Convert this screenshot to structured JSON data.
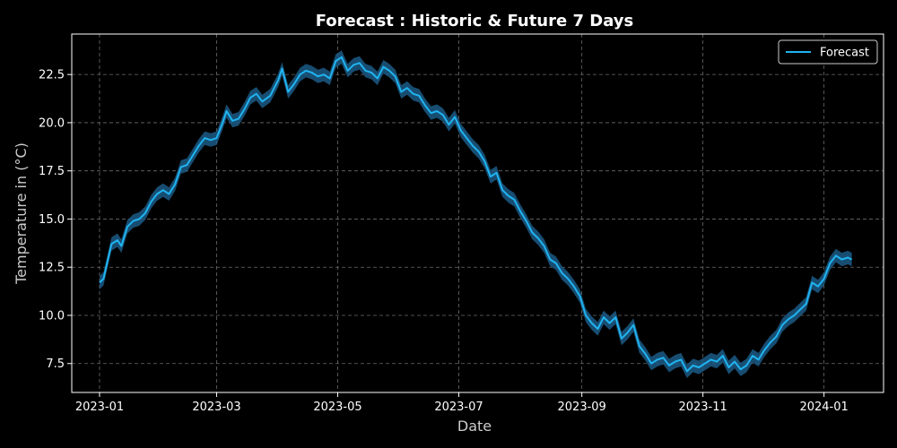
{
  "chart_data": {
    "type": "line",
    "title": "Forecast : Historic & Future 7 Days",
    "xlabel": "Date",
    "ylabel": "Temperature in (°C)",
    "xlim": [
      "2022-12-18",
      "2024-01-31"
    ],
    "ylim": [
      6.0,
      24.6
    ],
    "x_ticks": [
      "2023-01",
      "2023-03",
      "2023-05",
      "2023-07",
      "2023-09",
      "2023-11",
      "2024-01"
    ],
    "x_tick_dates": [
      "2023-01-01",
      "2023-03-01",
      "2023-05-01",
      "2023-07-01",
      "2023-09-01",
      "2023-11-01",
      "2024-01-01"
    ],
    "y_ticks": [
      "7.5",
      "10.0",
      "12.5",
      "15.0",
      "17.5",
      "20.0",
      "22.5"
    ],
    "grid": true,
    "legend_position": "top-right",
    "series": [
      {
        "name": "Forecast",
        "color": "#1fb4f0",
        "band_color": "#1c5b86",
        "band_width": 0.35,
        "points": [
          [
            "2023-01-01",
            11.7
          ],
          [
            "2023-01-03",
            11.9
          ],
          [
            "2023-01-05",
            12.8
          ],
          [
            "2023-01-07",
            13.7
          ],
          [
            "2023-01-10",
            13.9
          ],
          [
            "2023-01-12",
            13.6
          ],
          [
            "2023-01-15",
            14.6
          ],
          [
            "2023-01-18",
            14.9
          ],
          [
            "2023-01-21",
            15.0
          ],
          [
            "2023-01-24",
            15.3
          ],
          [
            "2023-01-27",
            15.9
          ],
          [
            "2023-01-30",
            16.3
          ],
          [
            "2023-02-02",
            16.5
          ],
          [
            "2023-02-05",
            16.3
          ],
          [
            "2023-02-08",
            16.8
          ],
          [
            "2023-02-11",
            17.7
          ],
          [
            "2023-02-14",
            17.8
          ],
          [
            "2023-02-17",
            18.3
          ],
          [
            "2023-02-20",
            18.8
          ],
          [
            "2023-02-23",
            19.2
          ],
          [
            "2023-02-26",
            19.1
          ],
          [
            "2023-03-01",
            19.2
          ],
          [
            "2023-03-04",
            20.0
          ],
          [
            "2023-03-06",
            20.6
          ],
          [
            "2023-03-09",
            20.1
          ],
          [
            "2023-03-12",
            20.2
          ],
          [
            "2023-03-15",
            20.7
          ],
          [
            "2023-03-18",
            21.3
          ],
          [
            "2023-03-21",
            21.5
          ],
          [
            "2023-03-24",
            21.1
          ],
          [
            "2023-03-28",
            21.4
          ],
          [
            "2023-04-01",
            22.2
          ],
          [
            "2023-04-03",
            22.8
          ],
          [
            "2023-04-06",
            21.6
          ],
          [
            "2023-04-09",
            22.0
          ],
          [
            "2023-04-12",
            22.5
          ],
          [
            "2023-04-15",
            22.7
          ],
          [
            "2023-04-18",
            22.6
          ],
          [
            "2023-04-21",
            22.4
          ],
          [
            "2023-04-24",
            22.5
          ],
          [
            "2023-04-27",
            22.3
          ],
          [
            "2023-04-30",
            23.2
          ],
          [
            "2023-05-03",
            23.4
          ],
          [
            "2023-05-06",
            22.7
          ],
          [
            "2023-05-09",
            23.0
          ],
          [
            "2023-05-12",
            23.1
          ],
          [
            "2023-05-15",
            22.7
          ],
          [
            "2023-05-18",
            22.6
          ],
          [
            "2023-05-21",
            22.3
          ],
          [
            "2023-05-24",
            22.9
          ],
          [
            "2023-05-27",
            22.7
          ],
          [
            "2023-05-30",
            22.4
          ],
          [
            "2023-06-02",
            21.6
          ],
          [
            "2023-06-05",
            21.8
          ],
          [
            "2023-06-08",
            21.5
          ],
          [
            "2023-06-11",
            21.4
          ],
          [
            "2023-06-14",
            20.9
          ],
          [
            "2023-06-17",
            20.5
          ],
          [
            "2023-06-20",
            20.6
          ],
          [
            "2023-06-23",
            20.4
          ],
          [
            "2023-06-26",
            19.9
          ],
          [
            "2023-06-29",
            20.3
          ],
          [
            "2023-07-02",
            19.6
          ],
          [
            "2023-07-05",
            19.2
          ],
          [
            "2023-07-08",
            18.8
          ],
          [
            "2023-07-11",
            18.5
          ],
          [
            "2023-07-14",
            18.0
          ],
          [
            "2023-07-17",
            17.2
          ],
          [
            "2023-07-20",
            17.4
          ],
          [
            "2023-07-23",
            16.5
          ],
          [
            "2023-07-26",
            16.2
          ],
          [
            "2023-07-29",
            16.0
          ],
          [
            "2023-08-01",
            15.4
          ],
          [
            "2023-08-04",
            14.9
          ],
          [
            "2023-08-07",
            14.3
          ],
          [
            "2023-08-10",
            14.0
          ],
          [
            "2023-08-13",
            13.6
          ],
          [
            "2023-08-16",
            12.9
          ],
          [
            "2023-08-19",
            12.7
          ],
          [
            "2023-08-22",
            12.2
          ],
          [
            "2023-08-25",
            11.9
          ],
          [
            "2023-08-28",
            11.5
          ],
          [
            "2023-08-31",
            11.0
          ],
          [
            "2023-09-03",
            10.0
          ],
          [
            "2023-09-06",
            9.6
          ],
          [
            "2023-09-09",
            9.3
          ],
          [
            "2023-09-12",
            9.9
          ],
          [
            "2023-09-15",
            9.6
          ],
          [
            "2023-09-18",
            9.9
          ],
          [
            "2023-09-21",
            8.8
          ],
          [
            "2023-09-24",
            9.1
          ],
          [
            "2023-09-27",
            9.5
          ],
          [
            "2023-09-30",
            8.4
          ],
          [
            "2023-10-03",
            8.0
          ],
          [
            "2023-10-06",
            7.5
          ],
          [
            "2023-10-09",
            7.7
          ],
          [
            "2023-10-12",
            7.8
          ],
          [
            "2023-10-15",
            7.4
          ],
          [
            "2023-10-18",
            7.6
          ],
          [
            "2023-10-21",
            7.7
          ],
          [
            "2023-10-24",
            7.1
          ],
          [
            "2023-10-27",
            7.4
          ],
          [
            "2023-10-30",
            7.3
          ],
          [
            "2023-11-02",
            7.5
          ],
          [
            "2023-11-05",
            7.7
          ],
          [
            "2023-11-08",
            7.6
          ],
          [
            "2023-11-11",
            7.9
          ],
          [
            "2023-11-14",
            7.3
          ],
          [
            "2023-11-17",
            7.6
          ],
          [
            "2023-11-20",
            7.2
          ],
          [
            "2023-11-23",
            7.4
          ],
          [
            "2023-11-26",
            7.9
          ],
          [
            "2023-11-29",
            7.7
          ],
          [
            "2023-12-02",
            8.2
          ],
          [
            "2023-12-05",
            8.6
          ],
          [
            "2023-12-08",
            8.9
          ],
          [
            "2023-12-11",
            9.5
          ],
          [
            "2023-12-14",
            9.8
          ],
          [
            "2023-12-17",
            10.0
          ],
          [
            "2023-12-20",
            10.3
          ],
          [
            "2023-12-23",
            10.6
          ],
          [
            "2023-12-26",
            11.7
          ],
          [
            "2023-12-29",
            11.5
          ],
          [
            "2024-01-01",
            11.9
          ],
          [
            "2024-01-04",
            12.7
          ],
          [
            "2024-01-07",
            13.1
          ],
          [
            "2024-01-10",
            12.9
          ],
          [
            "2024-01-13",
            13.0
          ],
          [
            "2024-01-15",
            12.9
          ]
        ]
      }
    ]
  }
}
